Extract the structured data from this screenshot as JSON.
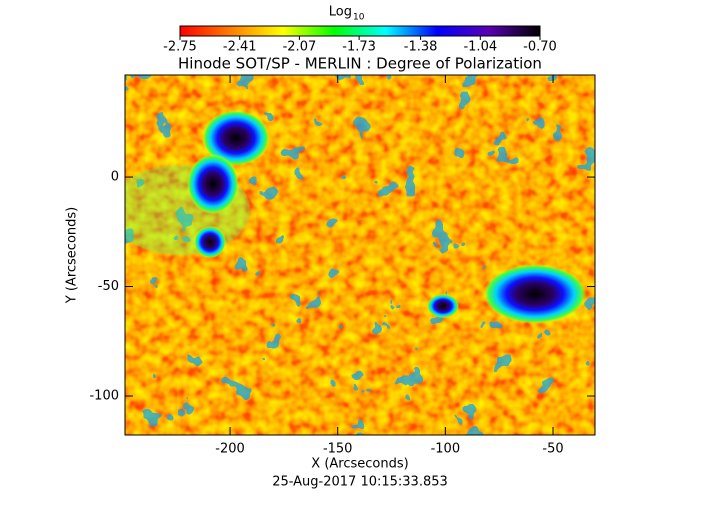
{
  "chart_data": {
    "type": "image",
    "title": "Hinode SOT/SP - MERLIN : Degree of Polarization",
    "xlabel": "X (Arcseconds)",
    "ylabel": "Y (Arcseconds)",
    "timestamp": "25-Aug-2017 10:15:33.853",
    "xlim": [
      -248.8,
      -30.5
    ],
    "xticks": [
      -200,
      -150,
      -100,
      -50
    ],
    "ylim": [
      -117.8,
      46.6
    ],
    "yticks": [
      -100,
      -50,
      0
    ],
    "colorbar": {
      "title": "Log",
      "title_subscript": "10",
      "lim": [
        -2.75,
        -0.7
      ],
      "ticks": [
        -2.75,
        -2.41,
        -2.07,
        -1.73,
        -1.38,
        -1.04,
        {
          "value": -0.7,
          "label": "-0.70"
        }
      ],
      "colors": [
        "#ff0000",
        "#ff7f00",
        "#ffff00",
        "#00ff00",
        "#00ffff",
        "#0000ff",
        "#5a00b4",
        "#000000"
      ]
    }
  }
}
